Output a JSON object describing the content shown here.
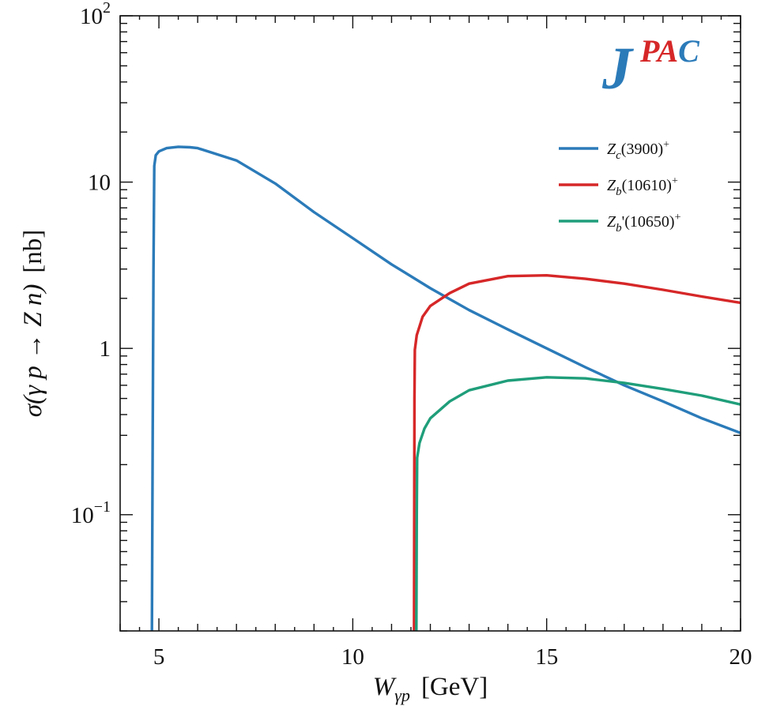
{
  "chart_data": {
    "type": "line",
    "xlabel": "W_{γp} [GeV]",
    "ylabel": "σ(γ p → Z n) [nb]",
    "xlim": [
      4,
      20
    ],
    "ylim": [
      0.02,
      100
    ],
    "yscale": "log",
    "grid": false,
    "legend_position": "top-right",
    "logo": "JPAC",
    "logo_colors": {
      "J": "#2b7bb9",
      "P": "#d62728",
      "A": "#d62728",
      "C": "#2b7bb9"
    },
    "x_ticks": [
      "5",
      "10",
      "15",
      "20"
    ],
    "y_ticks": [
      "10^2",
      "10",
      "1",
      "10^-1"
    ],
    "series": [
      {
        "name": "Z_c(3900)^+",
        "color": "#2b7bb9",
        "x": [
          4.82,
          4.84,
          4.86,
          4.88,
          4.92,
          5.0,
          5.2,
          5.5,
          5.8,
          6,
          7,
          8,
          9,
          10,
          11,
          12,
          13,
          14,
          15,
          16,
          17,
          18,
          19,
          20
        ],
        "y": [
          0.02,
          0.3,
          3.0,
          12.5,
          14.5,
          15.3,
          16.0,
          16.3,
          16.2,
          16.0,
          13.5,
          9.8,
          6.6,
          4.6,
          3.2,
          2.3,
          1.7,
          1.3,
          1.0,
          0.77,
          0.6,
          0.48,
          0.38,
          0.31
        ]
      },
      {
        "name": "Z_b(10610)^+",
        "color": "#d62728",
        "x": [
          11.58,
          11.59,
          11.6,
          11.65,
          11.8,
          12.0,
          12.5,
          13,
          14,
          15,
          16,
          17,
          18,
          19,
          20
        ],
        "y": [
          0.02,
          0.5,
          0.98,
          1.2,
          1.55,
          1.8,
          2.15,
          2.45,
          2.72,
          2.75,
          2.62,
          2.45,
          2.25,
          2.05,
          1.88
        ]
      },
      {
        "name": "Z_b'(10650)^+",
        "color": "#1f9e7a",
        "x": [
          11.64,
          11.65,
          11.66,
          11.72,
          11.85,
          12.0,
          12.5,
          13,
          14,
          15,
          16,
          17,
          18,
          19,
          20
        ],
        "y": [
          0.02,
          0.1,
          0.22,
          0.27,
          0.33,
          0.38,
          0.48,
          0.56,
          0.64,
          0.67,
          0.66,
          0.62,
          0.57,
          0.52,
          0.46
        ]
      }
    ]
  }
}
